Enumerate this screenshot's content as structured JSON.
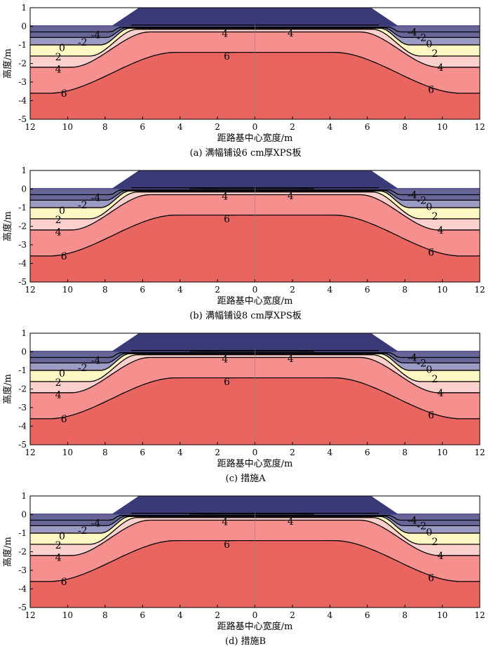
{
  "chart_data": [
    {
      "type": "contour",
      "caption": "(a) 满幅铺设6 cm厚XPS板",
      "xlabel": "距路基中心宽度/m",
      "ylabel": "高度/m",
      "xlim": [
        -12,
        12
      ],
      "ylim": [
        -5,
        1
      ],
      "x_tick_labels": [
        "12",
        "10",
        "8",
        "6",
        "4",
        "2",
        "0",
        "2",
        "4",
        "6",
        "8",
        "10",
        "12"
      ],
      "y_ticks": [
        1,
        0,
        -1,
        -2,
        -3,
        -4,
        -5
      ],
      "contour_labels": [
        "-4",
        "-2",
        "0",
        "2",
        "4",
        "6",
        "4",
        "4",
        "6",
        "-4",
        "-2",
        "0",
        "2",
        "4",
        "6"
      ],
      "colors": {
        "embankment": "#3b3a78",
        "band_-4": "#666699",
        "band_-2": "#9b9cc4",
        "band_0": "#fdf7c3",
        "band_2": "#fcd0cc",
        "band_4": "#f5908e",
        "band_6": "#e86560"
      }
    },
    {
      "type": "contour",
      "caption": "(b) 满幅铺设8 cm厚XPS板",
      "xlabel": "距路基中心宽度/m",
      "ylabel": "高度/m",
      "xlim": [
        -12,
        12
      ],
      "ylim": [
        -5,
        1
      ],
      "x_tick_labels": [
        "12",
        "10",
        "8",
        "6",
        "4",
        "2",
        "0",
        "2",
        "4",
        "6",
        "8",
        "10",
        "12"
      ],
      "y_ticks": [
        1,
        0,
        -1,
        -2,
        -3,
        -4,
        -5
      ],
      "contour_labels": [
        "-4",
        "-2",
        "0",
        "2",
        "4",
        "6",
        "4",
        "4",
        "6",
        "-4",
        "-2",
        "0",
        "2",
        "4",
        "6"
      ]
    },
    {
      "type": "contour",
      "caption": "(c) 措施A",
      "xlabel": "距路基中心宽度/m",
      "ylabel": "高度/m",
      "xlim": [
        -12,
        12
      ],
      "ylim": [
        -5,
        1
      ],
      "x_tick_labels": [
        "12",
        "10",
        "8",
        "6",
        "4",
        "2",
        "0",
        "2",
        "4",
        "6",
        "8",
        "10",
        "12"
      ],
      "y_ticks": [
        1,
        0,
        -1,
        -2,
        -3,
        -4,
        -5
      ],
      "contour_labels": [
        "-4",
        "-2",
        "0",
        "2",
        "4",
        "6",
        "4",
        "4",
        "6",
        "-4",
        "-2",
        "0",
        "2",
        "4",
        "6"
      ]
    },
    {
      "type": "contour",
      "caption": "(d) 措施B",
      "xlabel": "距路基中心宽度/m",
      "ylabel": "高度/m",
      "xlim": [
        -12,
        12
      ],
      "ylim": [
        -5,
        1
      ],
      "x_tick_labels": [
        "12",
        "10",
        "8",
        "6",
        "4",
        "2",
        "0",
        "2",
        "4",
        "6",
        "8",
        "10",
        "12"
      ],
      "y_ticks": [
        1,
        0,
        -1,
        -2,
        -3,
        -4,
        -5
      ],
      "contour_labels": [
        "-4",
        "-2",
        "0",
        "2",
        "4",
        "6",
        "4",
        "4",
        "6",
        "-4",
        "-2",
        "0",
        "2",
        "4",
        "6"
      ]
    }
  ]
}
